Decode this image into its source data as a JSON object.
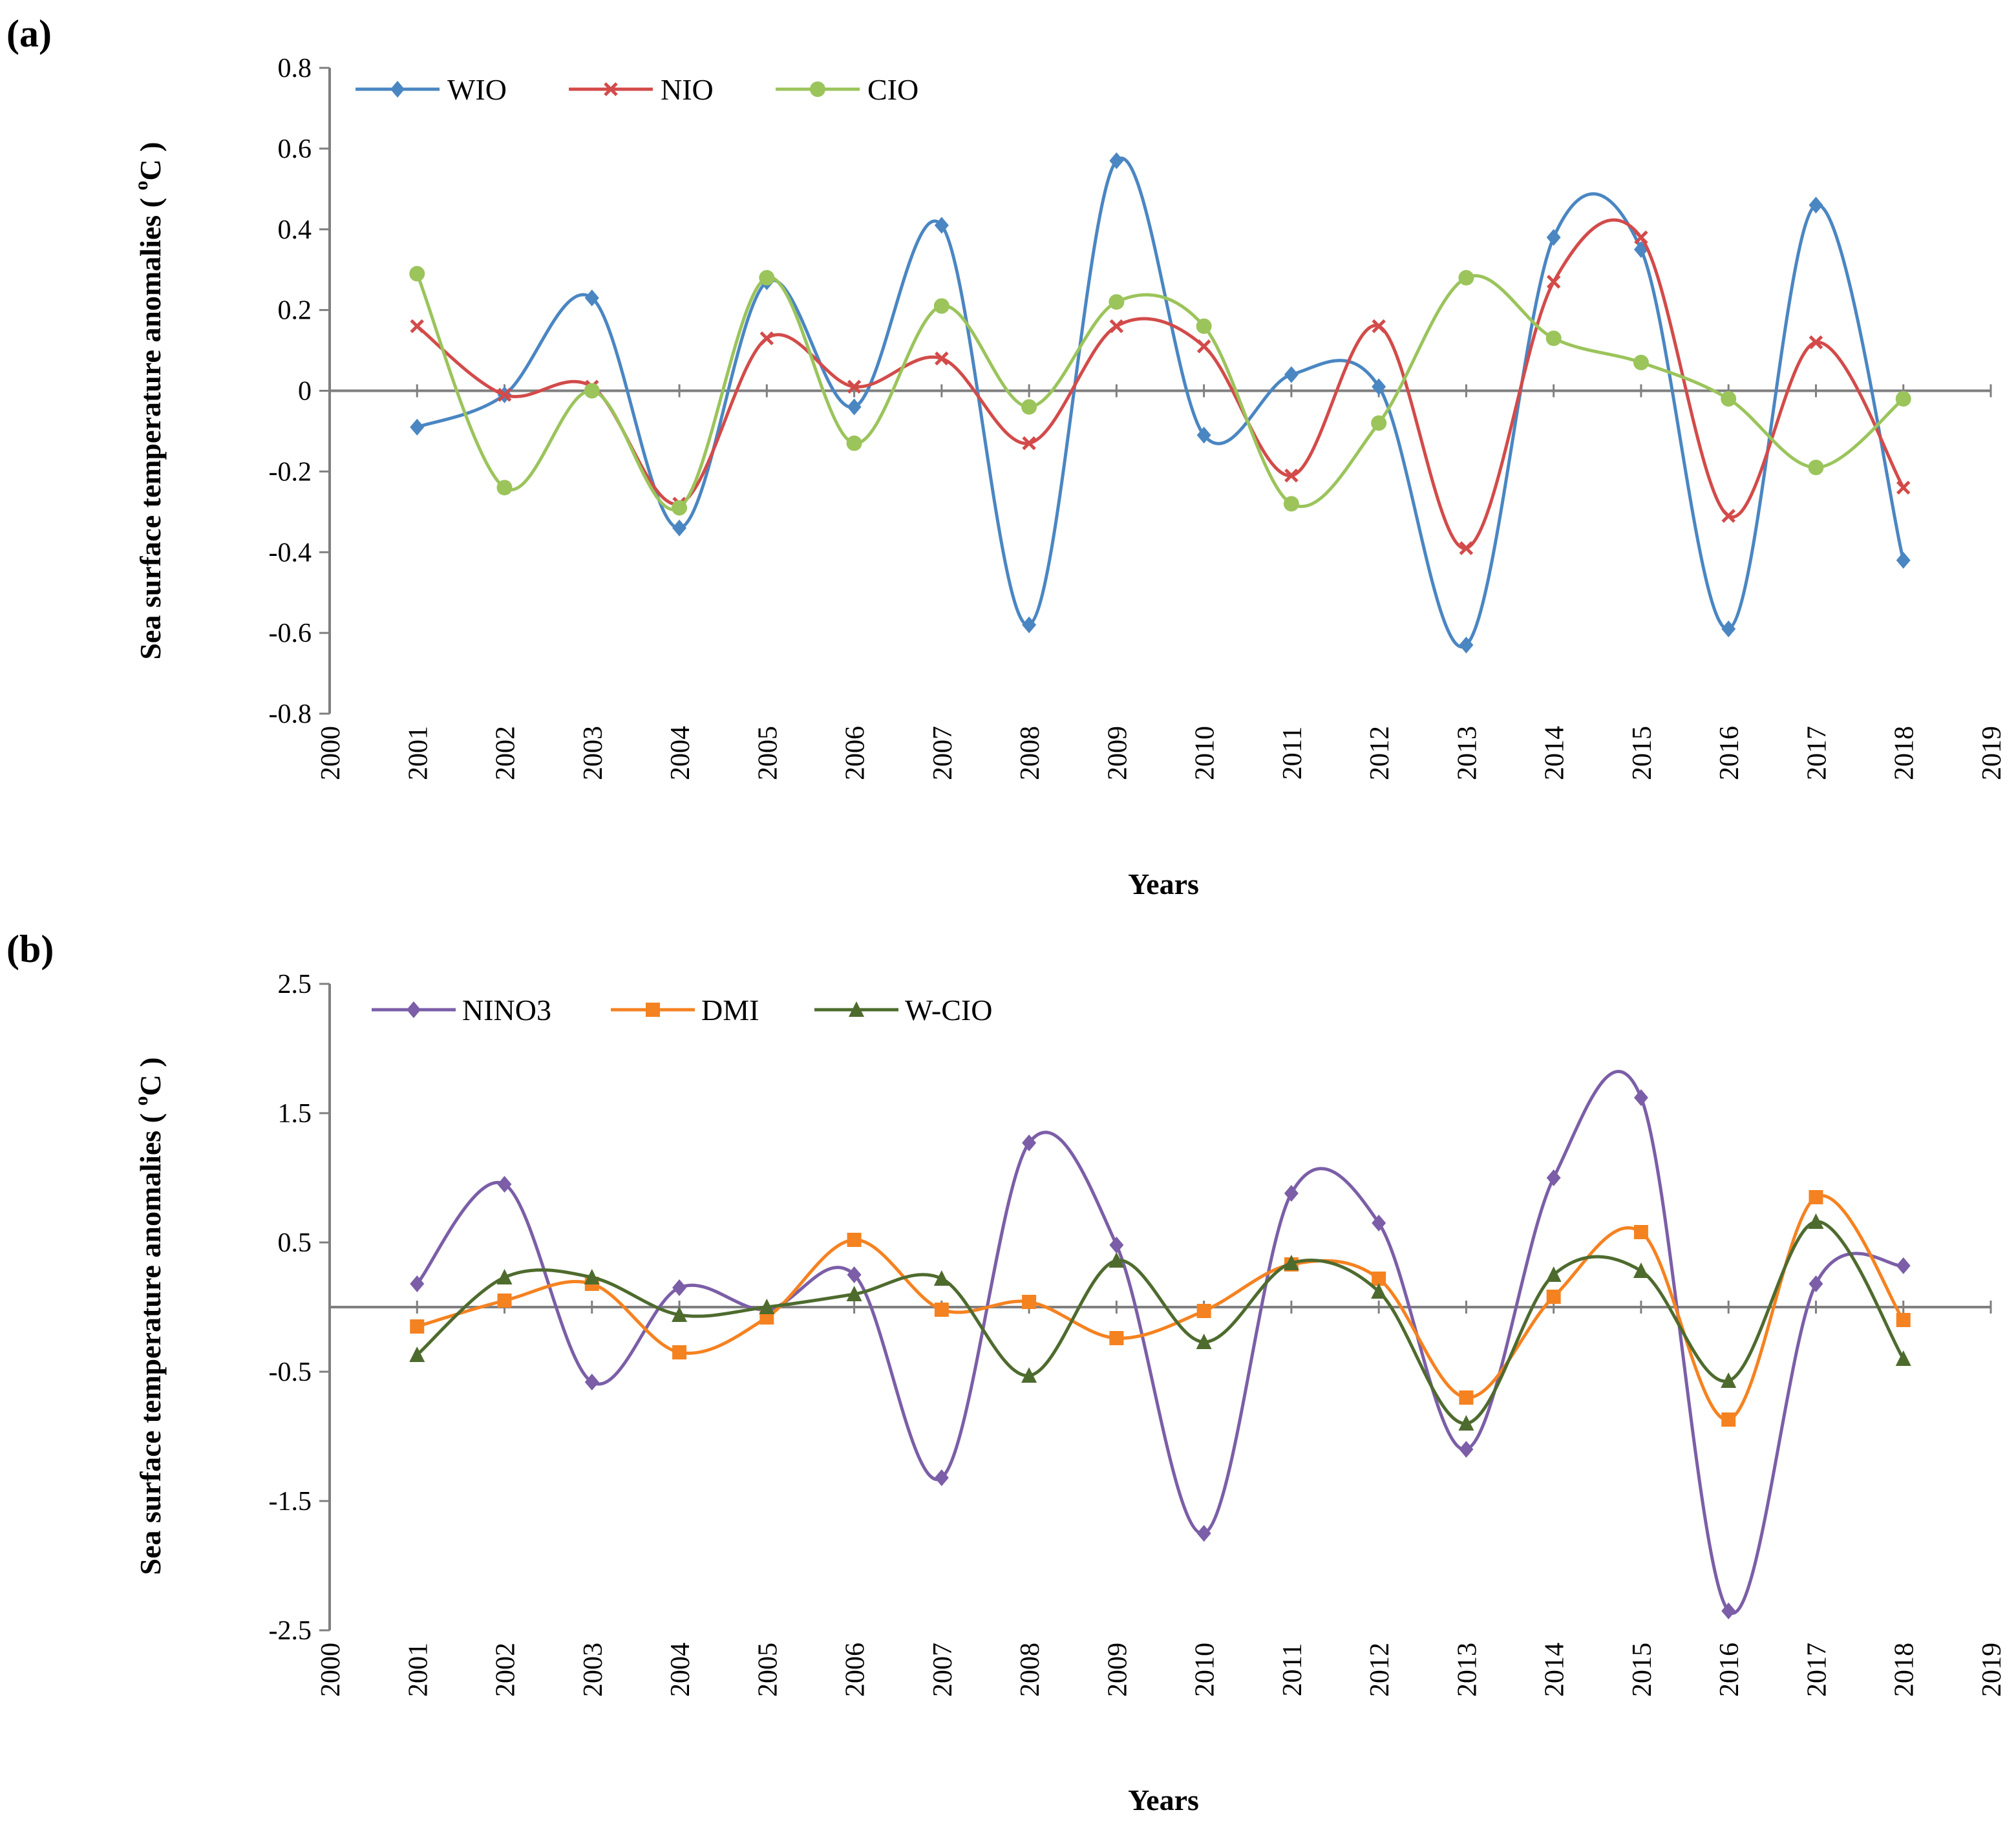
{
  "chart_data": [
    {
      "panel_label": "(a)",
      "type": "line",
      "smooth": true,
      "xlabel": "Years",
      "ylabel": "Sea  surface  temperature anomalies",
      "yunit_prefix": "( ",
      "yunit_sup": "o",
      "yunit_suffix": "C )",
      "xlim": [
        2000,
        2019
      ],
      "ylim": [
        -0.8,
        0.8
      ],
      "x_ticks": [
        "2000",
        "2001",
        "2002",
        "2003",
        "2004",
        "2005",
        "2006",
        "2007",
        "2008",
        "2009",
        "2010",
        "2011",
        "2012",
        "2013",
        "2014",
        "2015",
        "2016",
        "2017",
        "2018",
        "2019"
      ],
      "y_ticks": [
        "0.8",
        "0.6",
        "0.4",
        "0.2",
        "0",
        "-0.2",
        "-0.4",
        "-0.6",
        "-0.8"
      ],
      "legend_position": "top-left",
      "x": [
        2001,
        2002,
        2003,
        2004,
        2005,
        2006,
        2007,
        2008,
        2009,
        2010,
        2011,
        2012,
        2013,
        2014,
        2015,
        2016,
        2017,
        2018
      ],
      "series": [
        {
          "name": "WIO",
          "color": "#4a86c2",
          "marker": "diamond",
          "values": [
            -0.09,
            -0.01,
            0.23,
            -0.34,
            0.27,
            -0.04,
            0.41,
            -0.58,
            0.57,
            -0.11,
            0.04,
            0.01,
            -0.63,
            0.38,
            0.35,
            -0.59,
            0.46,
            -0.42
          ]
        },
        {
          "name": "NIO",
          "color": "#d24b4a",
          "marker": "x",
          "values": [
            0.16,
            -0.01,
            0.01,
            -0.28,
            0.13,
            0.01,
            0.08,
            -0.13,
            0.16,
            0.11,
            -0.21,
            0.16,
            -0.39,
            0.27,
            0.38,
            -0.31,
            0.12,
            -0.24
          ]
        },
        {
          "name": "CIO",
          "color": "#9bc45b",
          "marker": "circle",
          "values": [
            0.29,
            -0.24,
            0.0,
            -0.29,
            0.28,
            -0.13,
            0.21,
            -0.04,
            0.22,
            0.16,
            -0.28,
            -0.08,
            0.28,
            0.13,
            0.07,
            -0.02,
            -0.19,
            -0.02
          ]
        }
      ]
    },
    {
      "panel_label": "(b)",
      "type": "line",
      "smooth": true,
      "xlabel": "Years",
      "ylabel": "Sea  surface  temperature anomalies",
      "yunit_prefix": "( ",
      "yunit_sup": "o",
      "yunit_suffix": "C )",
      "xlim": [
        2000,
        2019
      ],
      "ylim": [
        -2.5,
        2.5
      ],
      "x_ticks": [
        "2000",
        "2001",
        "2002",
        "2003",
        "2004",
        "2005",
        "2006",
        "2007",
        "2008",
        "2009",
        "2010",
        "2011",
        "2012",
        "2013",
        "2014",
        "2015",
        "2016",
        "2017",
        "2018",
        "2019"
      ],
      "y_ticks": [
        "2.5",
        "1.5",
        "0.5",
        "-0.5",
        "-1.5",
        "-2.5"
      ],
      "legend_position": "top-left",
      "x": [
        2001,
        2002,
        2003,
        2004,
        2005,
        2006,
        2007,
        2008,
        2009,
        2010,
        2011,
        2012,
        2013,
        2014,
        2015,
        2016,
        2017,
        2018
      ],
      "series": [
        {
          "name": "NINO3",
          "color": "#7b5ea7",
          "marker": "diamond",
          "values": [
            0.18,
            0.95,
            -0.58,
            0.15,
            -0.02,
            0.25,
            -1.32,
            1.27,
            0.48,
            -1.75,
            0.88,
            0.65,
            -1.1,
            1.0,
            1.62,
            -2.35,
            0.18,
            0.32
          ]
        },
        {
          "name": "DMI",
          "color": "#f58220",
          "marker": "square",
          "values": [
            -0.15,
            0.05,
            0.18,
            -0.35,
            -0.08,
            0.52,
            -0.02,
            0.04,
            -0.24,
            -0.03,
            0.33,
            0.22,
            -0.7,
            0.08,
            0.58,
            -0.87,
            0.85,
            -0.1
          ]
        },
        {
          "name": "W-CIO",
          "color": "#4e6b2e",
          "marker": "triangle",
          "values": [
            -0.37,
            0.23,
            0.23,
            -0.06,
            0.0,
            0.1,
            0.22,
            -0.53,
            0.36,
            -0.27,
            0.34,
            0.12,
            -0.9,
            0.25,
            0.28,
            -0.57,
            0.66,
            -0.4
          ]
        }
      ]
    }
  ]
}
